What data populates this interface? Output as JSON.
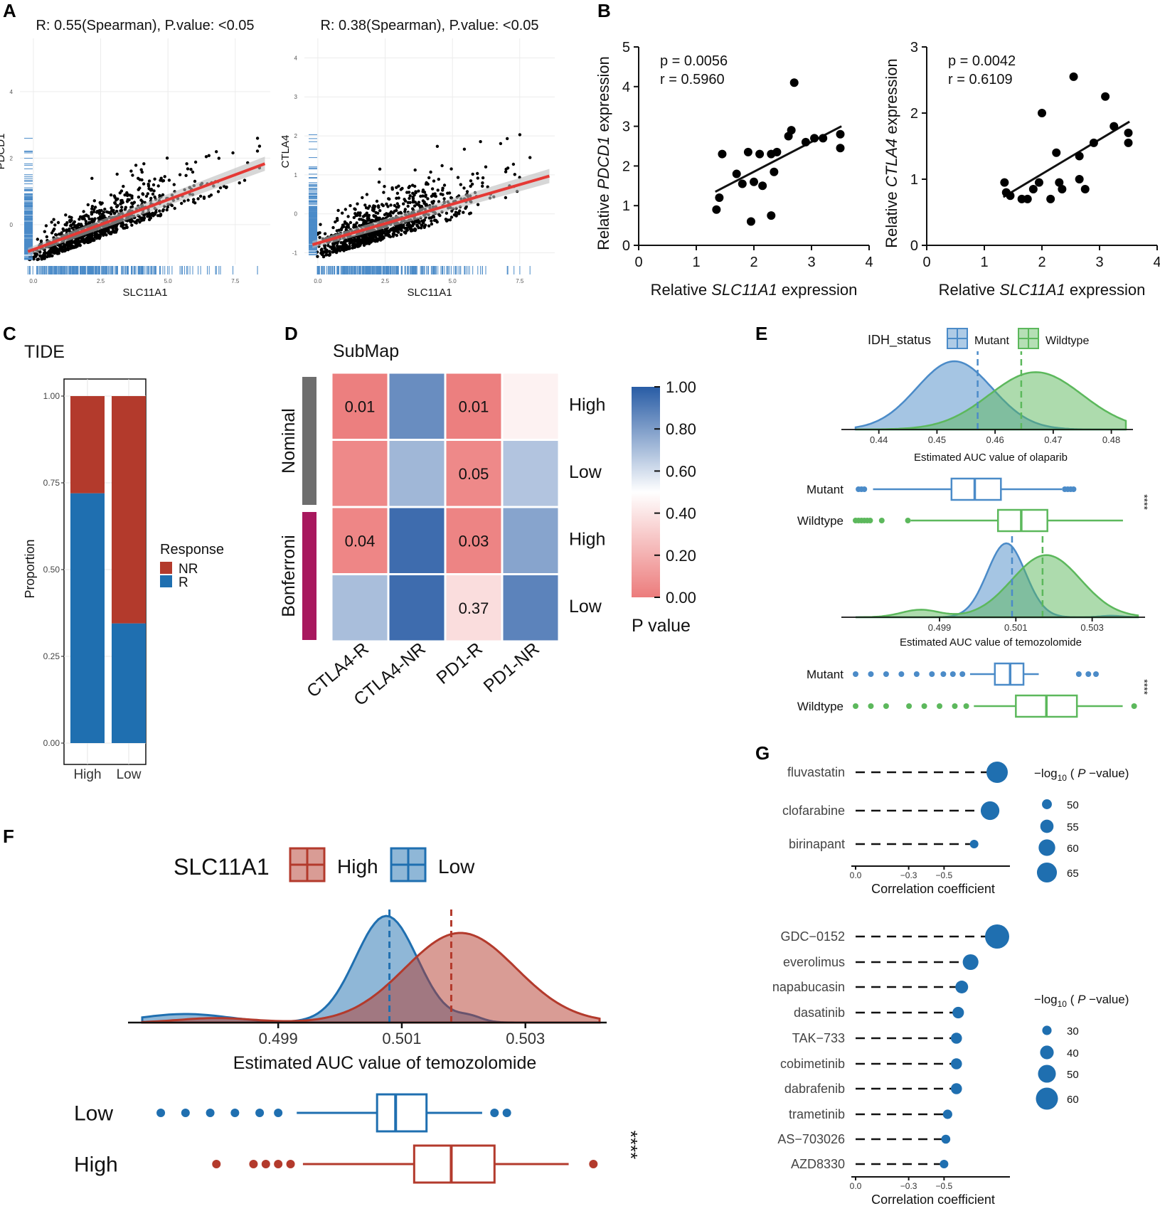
{
  "panel_letters": {
    "A": "A",
    "B": "B",
    "C": "C",
    "D": "D",
    "E": "E",
    "F": "F",
    "G": "G"
  },
  "colors": {
    "blue": "#4b8bc8",
    "blue_dark": "#1f6fb0",
    "green": "#5cb85c",
    "red": "#b33a2c",
    "red_light": "#ec7c7c",
    "magenta": "#a8185e",
    "gray_bar": "#6e6e6e",
    "reg_line": "#e53935",
    "pale_blue": "#8fb3d8"
  },
  "chart_data": [
    {
      "id": "A1",
      "type": "scatter",
      "title": "R: 0.55(Spearman), P.value: <0.05",
      "xlabel": "SLC11A1",
      "ylabel": "PDCD1",
      "xticks": [
        "0.0",
        "2.5",
        "5.0",
        "7.5"
      ],
      "yticks": [
        "0",
        "2",
        "4"
      ],
      "xlim": [
        -0.5,
        8.8
      ],
      "ylim": [
        -1.2,
        5.6
      ],
      "n_points": 900,
      "spearman_r": 0.55,
      "trend": {
        "slope": 0.3,
        "intercept": -1.0
      }
    },
    {
      "id": "A2",
      "type": "scatter",
      "title": "R: 0.38(Spearman), P.value: <0.05",
      "xlabel": "SLC11A1",
      "ylabel": "CTLA4",
      "xticks": [
        "0.0",
        "2.5",
        "5.0",
        "7.5"
      ],
      "yticks": [
        "-1",
        "0",
        "1",
        "2",
        "3",
        "4"
      ],
      "xlim": [
        -0.5,
        8.8
      ],
      "ylim": [
        -1.3,
        4.5
      ],
      "n_points": 900,
      "spearman_r": 0.38,
      "trend": {
        "slope": 0.2,
        "intercept": -1.0
      }
    },
    {
      "id": "B1",
      "type": "scatter",
      "annotation": [
        "p = 0.0056",
        "r = 0.5960"
      ],
      "xlabel_pre": "Relative ",
      "xlabel_gene": "SLC11A1",
      "xlabel_post": " expression",
      "ylabel_pre": "Relative ",
      "ylabel_gene": "PDCD1",
      "ylabel_post": " expression",
      "xticks": [
        "0",
        "1",
        "2",
        "3",
        "4"
      ],
      "yticks": [
        "0",
        "1",
        "2",
        "3",
        "4",
        "5"
      ],
      "xlim": [
        0,
        4
      ],
      "ylim": [
        0,
        5
      ],
      "x": [
        1.35,
        1.4,
        1.45,
        1.7,
        1.8,
        1.9,
        1.95,
        2.0,
        2.1,
        2.15,
        2.3,
        2.3,
        2.35,
        2.4,
        2.6,
        2.65,
        2.7,
        2.9,
        3.05,
        3.2,
        3.5,
        3.5
      ],
      "y": [
        0.9,
        1.2,
        2.3,
        1.8,
        1.55,
        2.35,
        0.6,
        1.6,
        2.3,
        1.5,
        2.3,
        0.75,
        1.85,
        2.35,
        2.75,
        2.9,
        4.1,
        2.6,
        2.7,
        2.7,
        2.8,
        2.45
      ],
      "fit": {
        "x1": 1.33,
        "y1": 1.35,
        "x2": 3.52,
        "y2": 3.0
      }
    },
    {
      "id": "B2",
      "type": "scatter",
      "annotation": [
        "p = 0.0042",
        "r = 0.6109"
      ],
      "xlabel_pre": "Relative ",
      "xlabel_gene": "SLC11A1",
      "xlabel_post": " expression",
      "ylabel_pre": "Relative ",
      "ylabel_gene": "CTLA4",
      "ylabel_post": " expression",
      "xticks": [
        "0",
        "1",
        "2",
        "3",
        "4"
      ],
      "yticks": [
        "0",
        "1",
        "2",
        "3"
      ],
      "xlim": [
        0,
        4
      ],
      "ylim": [
        0,
        3
      ],
      "x": [
        1.35,
        1.38,
        1.45,
        1.65,
        1.75,
        1.85,
        1.95,
        2.0,
        2.15,
        2.25,
        2.3,
        2.35,
        2.55,
        2.65,
        2.65,
        2.75,
        2.9,
        3.1,
        3.25,
        3.5,
        3.5
      ],
      "y": [
        0.95,
        0.8,
        0.75,
        0.7,
        0.7,
        0.85,
        0.95,
        2.0,
        0.7,
        1.4,
        0.95,
        0.85,
        2.55,
        1.0,
        1.35,
        0.85,
        1.55,
        2.25,
        1.8,
        1.7,
        1.55
      ],
      "fit": {
        "x1": 1.33,
        "y1": 0.73,
        "x2": 3.52,
        "y2": 1.87
      }
    },
    {
      "id": "C",
      "type": "bar",
      "title": "TIDE",
      "ylabel": "Proportion",
      "categories": [
        "High",
        "Low"
      ],
      "series": [
        {
          "name": "R",
          "values": [
            0.72,
            0.345
          ]
        },
        {
          "name": "NR",
          "values": [
            0.28,
            0.655
          ]
        }
      ],
      "yticks": [
        "0.00",
        "0.25",
        "0.50",
        "0.75",
        "1.00"
      ],
      "legend_title": "Response",
      "legend": [
        "NR",
        "R"
      ],
      "ylim": [
        0,
        1
      ]
    },
    {
      "id": "D",
      "type": "heatmap",
      "title": "SubMap",
      "columns": [
        "CTLA4-R",
        "CTLA4-NR",
        "PD1-R",
        "PD1-NR"
      ],
      "row_labels": [
        "High",
        "Low",
        "High",
        "Low"
      ],
      "groups": [
        "Nominal",
        "Bonferroni"
      ],
      "values": [
        [
          0.01,
          0.85,
          0.01,
          0.45
        ],
        [
          0.05,
          0.72,
          0.05,
          0.68
        ],
        [
          0.04,
          0.95,
          0.03,
          0.78
        ],
        [
          0.7,
          0.95,
          0.37,
          0.88
        ]
      ],
      "labels": [
        [
          "0.01",
          "",
          "0.01",
          ""
        ],
        [
          "",
          "",
          "0.05",
          ""
        ],
        [
          "0.04",
          "",
          "0.03",
          ""
        ],
        [
          "",
          "",
          "0.37",
          ""
        ]
      ],
      "colorbar_ticks": [
        "0.00",
        "0.20",
        "0.40",
        "0.60",
        "0.80",
        "1.00"
      ],
      "colorbar_title": "P value"
    },
    {
      "id": "E1",
      "type": "area",
      "legend_title": "IDH_status",
      "legend": [
        "Mutant",
        "Wildtype"
      ],
      "xlabel": "Estimated AUC value of olaparib",
      "xticks": [
        0.44,
        0.45,
        0.46,
        0.47,
        0.48
      ],
      "xlim": [
        0.436,
        0.4825
      ],
      "series": [
        {
          "name": "Mutant",
          "mean": 0.453,
          "sd": 0.0065,
          "median": 0.457
        },
        {
          "name": "Wildtype",
          "mean": 0.467,
          "sd": 0.008,
          "median": 0.4645
        }
      ],
      "box": [
        {
          "name": "Mutant",
          "lw": 0.439,
          "q1": 0.4525,
          "med": 0.4565,
          "q3": 0.461,
          "uw": 0.4715,
          "outliers": [
            0.4365,
            0.437,
            0.4375,
            0.472,
            0.4725,
            0.473,
            0.4735
          ]
        },
        {
          "name": "Wildtype",
          "lw": 0.4455,
          "q1": 0.4605,
          "med": 0.4645,
          "q3": 0.469,
          "uw": 0.482,
          "outliers": [
            0.436,
            0.4365,
            0.437,
            0.4375,
            0.438,
            0.4385,
            0.4405,
            0.445
          ]
        }
      ],
      "signif": "****"
    },
    {
      "id": "E2",
      "type": "area",
      "xlabel": "Estimated AUC value of temozolomide",
      "xticks": [
        0.499,
        0.501,
        0.503
      ],
      "xlim": [
        0.4968,
        0.5042
      ],
      "series": [
        {
          "name": "Mutant",
          "mean": 0.50075,
          "sd": 0.0005,
          "median": 0.5009
        },
        {
          "name": "Wildtype",
          "mean": 0.5018,
          "sd": 0.0009,
          "median": 0.5017
        }
      ],
      "box": [
        {
          "name": "Mutant",
          "lw": 0.4998,
          "q1": 0.50045,
          "med": 0.50085,
          "q3": 0.5012,
          "uw": 0.5016,
          "outliers": [
            0.4968,
            0.4972,
            0.4976,
            0.498,
            0.4984,
            0.4988,
            0.4991,
            0.49935,
            0.4996,
            0.50265,
            0.5029,
            0.5031
          ]
        },
        {
          "name": "Wildtype",
          "lw": 0.4999,
          "q1": 0.501,
          "med": 0.5018,
          "q3": 0.5026,
          "uw": 0.5038,
          "outliers": [
            0.4968,
            0.4972,
            0.4976,
            0.4982,
            0.4986,
            0.499,
            0.4994,
            0.4997,
            0.5041
          ]
        }
      ],
      "signif": "****"
    },
    {
      "id": "F",
      "type": "area",
      "legend_title": "SLC11A1",
      "legend": [
        "High",
        "Low"
      ],
      "xlabel": "Estimated AUC value of temozolomide",
      "xticks": [
        0.499,
        0.501,
        0.503
      ],
      "xlim": [
        0.4968,
        0.5042
      ],
      "series": [
        {
          "name": "Low",
          "mean": 0.50075,
          "sd": 0.0005,
          "median": 0.5008
        },
        {
          "name": "High",
          "mean": 0.50195,
          "sd": 0.0009,
          "median": 0.5018
        }
      ],
      "box": [
        {
          "name": "Low",
          "lw": 0.4993,
          "q1": 0.5006,
          "med": 0.5009,
          "q3": 0.5014,
          "uw": 0.5023,
          "outliers": [
            0.4971,
            0.4975,
            0.4979,
            0.4983,
            0.4987,
            0.499,
            0.5025,
            0.5027
          ]
        },
        {
          "name": "High",
          "lw": 0.4994,
          "q1": 0.5012,
          "med": 0.5018,
          "q3": 0.5025,
          "uw": 0.5037,
          "outliers": [
            0.498,
            0.4986,
            0.4988,
            0.499,
            0.4992,
            0.5041
          ]
        }
      ],
      "signif": "****"
    },
    {
      "id": "G1",
      "type": "scatter",
      "drugs": [
        "fluvastatin",
        "clofarabine",
        "birinapant"
      ],
      "values": [
        -0.8,
        -0.76,
        -0.67
      ],
      "neglog10p": [
        67,
        63,
        48
      ],
      "xlabel": "Correlation coefficient",
      "xticks": [
        "0.0",
        "−0.3",
        "−0.5"
      ],
      "size_legend_title": "−log10 ( P −value)",
      "size_legend": [
        "50",
        "55",
        "60",
        "65"
      ]
    },
    {
      "id": "G2",
      "type": "scatter",
      "drugs": [
        "GDC−0152",
        "everolimus",
        "napabucasin",
        "dasatinib",
        "TAK−733",
        "cobimetinib",
        "dabrafenib",
        "trametinib",
        "AS−703026",
        "AZD8330"
      ],
      "values": [
        -0.8,
        -0.65,
        -0.6,
        -0.58,
        -0.57,
        -0.57,
        -0.57,
        -0.52,
        -0.51,
        -0.5
      ],
      "neglog10p": [
        65,
        45,
        38,
        35,
        34,
        34,
        34,
        30,
        29,
        28
      ],
      "xlabel": "Correlation coefficient",
      "xticks": [
        "0.0",
        "−0.3",
        "−0.5"
      ],
      "size_legend_title": "−log10 ( P −value)",
      "size_legend": [
        "30",
        "40",
        "50",
        "60"
      ]
    }
  ]
}
